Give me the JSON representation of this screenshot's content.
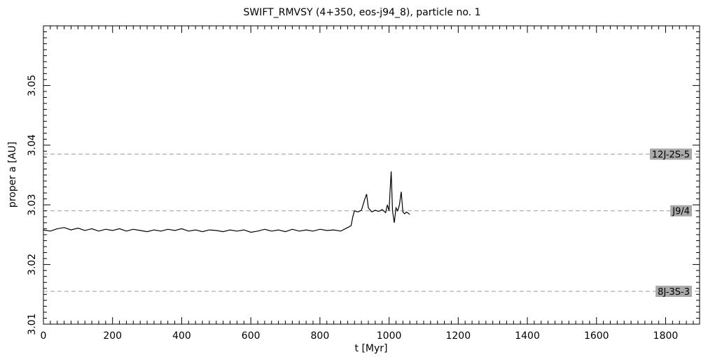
{
  "chart_data": {
    "type": "line",
    "title": "SWIFT_RMVSY (4+350, eos-j94_8), particle no. 1",
    "xlabel": "t [Myr]",
    "ylabel": "proper a [AU]",
    "xlim": [
      0,
      1900
    ],
    "ylim": [
      3.01,
      3.06
    ],
    "x_ticks": [
      0,
      200,
      400,
      600,
      800,
      1000,
      1200,
      1400,
      1600,
      1800
    ],
    "x_tick_labels": [
      "0",
      "200",
      "400",
      "600",
      "800",
      "1000",
      "1200",
      "1400",
      "1600",
      "1800"
    ],
    "y_ticks": [
      3.01,
      3.02,
      3.03,
      3.04,
      3.05
    ],
    "y_tick_labels": [
      "3.01",
      "3.02",
      "3.03",
      "3.04",
      "3.05"
    ],
    "grid": false,
    "resonances": [
      {
        "label": "12J-2S-5",
        "a": 3.0385
      },
      {
        "label": "J9/4",
        "a": 3.029
      },
      {
        "label": "8J-3S-3",
        "a": 3.0155
      }
    ],
    "series": [
      {
        "color": "#000000",
        "x": [
          0,
          20,
          40,
          60,
          80,
          100,
          120,
          140,
          160,
          180,
          200,
          220,
          240,
          260,
          280,
          300,
          320,
          340,
          360,
          380,
          400,
          420,
          440,
          460,
          480,
          500,
          520,
          540,
          560,
          580,
          600,
          620,
          640,
          660,
          680,
          700,
          720,
          740,
          760,
          780,
          800,
          820,
          840,
          860,
          880,
          890,
          895,
          900,
          910,
          920,
          930,
          935,
          940,
          950,
          960,
          970,
          980,
          990,
          995,
          1000,
          1003,
          1006,
          1010,
          1015,
          1020,
          1025,
          1030,
          1035,
          1040,
          1045,
          1050,
          1060
        ],
        "y": [
          3.0258,
          3.0256,
          3.026,
          3.0262,
          3.0258,
          3.0261,
          3.0257,
          3.026,
          3.0256,
          3.0259,
          3.0257,
          3.026,
          3.0256,
          3.0259,
          3.0257,
          3.0255,
          3.0258,
          3.0256,
          3.0259,
          3.0257,
          3.026,
          3.0256,
          3.0258,
          3.0255,
          3.0258,
          3.0257,
          3.0255,
          3.0258,
          3.0256,
          3.0258,
          3.0254,
          3.0256,
          3.0259,
          3.0256,
          3.0258,
          3.0255,
          3.0259,
          3.0256,
          3.0258,
          3.0256,
          3.0259,
          3.0257,
          3.0258,
          3.0256,
          3.0262,
          3.0265,
          3.028,
          3.029,
          3.0288,
          3.0291,
          3.031,
          3.0318,
          3.0295,
          3.0288,
          3.0291,
          3.0289,
          3.0292,
          3.0287,
          3.03,
          3.029,
          3.0325,
          3.0356,
          3.029,
          3.027,
          3.0295,
          3.029,
          3.03,
          3.0322,
          3.0288,
          3.0285,
          3.0288,
          3.0284
        ]
      }
    ]
  }
}
